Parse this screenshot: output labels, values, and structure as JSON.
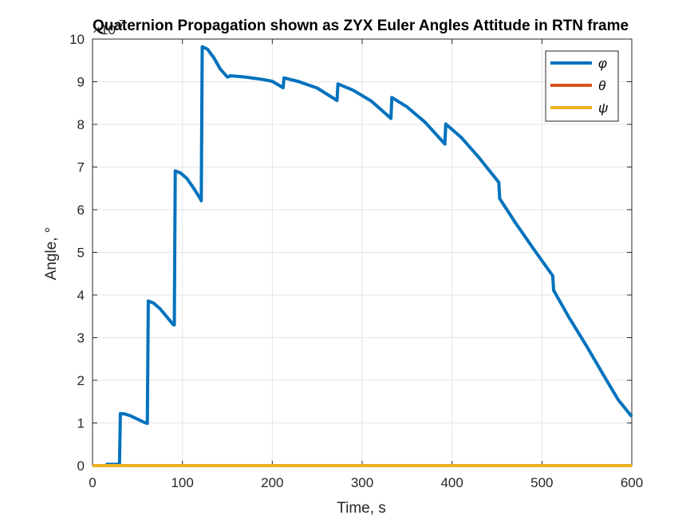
{
  "figure": {
    "title": "Quaternion Propagation shown as ZYX Euler Angles Attitude in RTN frame",
    "xlabel": "Time, s",
    "ylabel": "Angle, °",
    "exponent_label": "×10",
    "exponent_power": "-7"
  },
  "chart_data": {
    "type": "line",
    "title": "Quaternion Propagation shown as ZYX Euler Angles Attitude in RTN frame",
    "xlabel": "Time, s",
    "ylabel": "Angle, °",
    "y_scale_factor": "1e-7",
    "xlim": [
      0,
      600
    ],
    "ylim": [
      0,
      10
    ],
    "xticks": [
      0,
      100,
      200,
      300,
      400,
      500,
      600
    ],
    "yticks": [
      0,
      1,
      2,
      3,
      4,
      5,
      6,
      7,
      8,
      9,
      10
    ],
    "xtick_labels": [
      "0",
      "100",
      "200",
      "300",
      "400",
      "500",
      "600"
    ],
    "ytick_labels": [
      "0",
      "1",
      "2",
      "3",
      "4",
      "5",
      "6",
      "7",
      "8",
      "9",
      "10"
    ],
    "grid": true,
    "legend_position": "top-right",
    "series": [
      {
        "name": "φ",
        "color": "#0072BD",
        "points": [
          [
            0,
            0
          ],
          [
            15,
            0
          ],
          [
            16,
            0.03
          ],
          [
            30,
            0.03
          ],
          [
            31,
            1.22
          ],
          [
            36,
            1.21
          ],
          [
            42,
            1.17
          ],
          [
            50,
            1.09
          ],
          [
            58,
            1.01
          ],
          [
            61,
            0.99
          ],
          [
            62,
            3.86
          ],
          [
            68,
            3.81
          ],
          [
            75,
            3.68
          ],
          [
            83,
            3.48
          ],
          [
            90,
            3.3
          ],
          [
            91,
            3.3
          ],
          [
            92,
            6.91
          ],
          [
            98,
            6.86
          ],
          [
            105,
            6.73
          ],
          [
            113,
            6.49
          ],
          [
            120,
            6.25
          ],
          [
            121,
            6.21
          ],
          [
            122,
            9.82
          ],
          [
            128,
            9.76
          ],
          [
            135,
            9.56
          ],
          [
            142,
            9.3
          ],
          [
            150,
            9.11
          ],
          [
            152,
            9.12
          ],
          [
            153,
            9.14
          ],
          [
            170,
            9.11
          ],
          [
            190,
            9.05
          ],
          [
            200,
            9.01
          ],
          [
            212,
            8.86
          ],
          [
            213,
            9.09
          ],
          [
            230,
            9.0
          ],
          [
            250,
            8.85
          ],
          [
            272,
            8.56
          ],
          [
            273,
            8.95
          ],
          [
            290,
            8.8
          ],
          [
            310,
            8.55
          ],
          [
            332,
            8.14
          ],
          [
            333,
            8.63
          ],
          [
            350,
            8.41
          ],
          [
            370,
            8.05
          ],
          [
            392,
            7.54
          ],
          [
            393,
            8.01
          ],
          [
            410,
            7.7
          ],
          [
            430,
            7.22
          ],
          [
            452,
            6.64
          ],
          [
            453,
            6.26
          ],
          [
            470,
            5.71
          ],
          [
            490,
            5.1
          ],
          [
            512,
            4.45
          ],
          [
            513,
            4.11
          ],
          [
            530,
            3.48
          ],
          [
            550,
            2.79
          ],
          [
            570,
            2.07
          ],
          [
            585,
            1.54
          ],
          [
            600,
            1.15
          ]
        ]
      },
      {
        "name": "θ",
        "color": "#D95319",
        "points": [
          [
            0,
            0
          ],
          [
            600,
            0
          ]
        ]
      },
      {
        "name": "ψ",
        "color": "#EDB120",
        "points": [
          [
            0,
            0
          ],
          [
            600,
            0
          ]
        ]
      }
    ]
  }
}
